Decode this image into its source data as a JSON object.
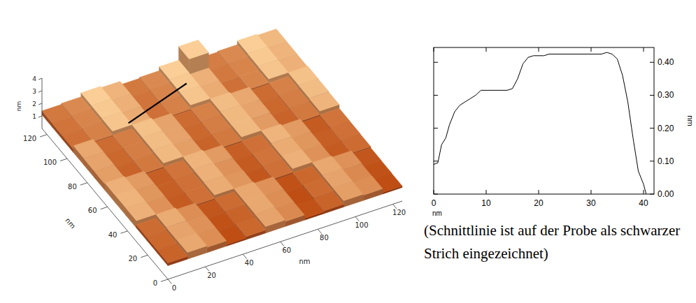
{
  "chart_data": [
    {
      "type": "surface",
      "x_label": "nm",
      "y_label": "nm",
      "z_label": "nm",
      "xlim": [
        0,
        125
      ],
      "ylim": [
        0,
        125
      ],
      "zlim": [
        0,
        4
      ],
      "xticks": [
        0,
        20,
        40,
        60,
        80,
        100,
        120
      ],
      "yticks": [
        0,
        20,
        40,
        60,
        80,
        100,
        120
      ],
      "zticks": [
        1,
        2,
        3,
        4
      ],
      "z": [
        [
          1.3,
          1.62,
          1.5,
          1.2,
          1.32,
          1.6,
          1.48,
          1.22,
          1.3,
          1.58,
          1.5,
          1.2
        ],
        [
          1.32,
          1.6,
          1.52,
          1.22,
          1.3,
          1.62,
          1.5,
          1.2,
          1.34,
          1.6,
          1.48,
          1.22
        ],
        [
          1.34,
          1.64,
          1.5,
          1.24,
          1.34,
          1.62,
          1.52,
          1.22,
          1.32,
          1.62,
          1.52,
          1.24
        ],
        [
          1.66,
          1.52,
          1.26,
          1.36,
          1.64,
          1.54,
          1.24,
          1.36,
          1.66,
          1.52,
          1.26,
          1.34
        ],
        [
          1.68,
          1.54,
          1.28,
          1.36,
          1.66,
          1.52,
          1.26,
          1.38,
          1.64,
          1.54,
          1.28,
          1.36
        ],
        [
          1.66,
          1.56,
          1.28,
          1.38,
          1.68,
          1.56,
          1.28,
          1.36,
          1.68,
          1.56,
          1.26,
          1.38
        ],
        [
          1.58,
          1.3,
          1.4,
          1.7,
          1.58,
          1.3,
          1.4,
          1.7,
          1.56,
          1.3,
          1.4,
          1.68
        ],
        [
          1.6,
          1.32,
          1.42,
          1.72,
          1.6,
          1.32,
          1.42,
          1.7,
          1.6,
          1.32,
          1.42,
          1.72
        ],
        [
          1.62,
          1.34,
          1.42,
          1.74,
          1.6,
          1.34,
          1.44,
          1.72,
          1.62,
          1.34,
          1.44,
          1.74
        ],
        [
          1.36,
          1.44,
          1.76,
          1.64,
          1.36,
          1.44,
          1.76,
          1.64,
          1.36,
          1.46,
          1.76,
          1.66
        ],
        [
          1.38,
          1.46,
          1.78,
          1.66,
          1.38,
          1.46,
          1.78,
          1.66,
          1.4,
          1.46,
          1.78,
          1.68
        ],
        [
          1.4,
          1.48,
          1.8,
          1.68,
          1.4,
          1.48,
          1.8,
          2.9,
          1.42,
          1.48,
          1.8,
          1.7
        ]
      ],
      "cut_line": {
        "x": [
          30,
          68
        ],
        "y": [
          95,
          108
        ],
        "color": "#000000"
      }
    },
    {
      "type": "line",
      "x_label": "nm",
      "y_label": "nm",
      "xlim": [
        0,
        42
      ],
      "ylim": [
        0,
        0.445
      ],
      "xticks": [
        0,
        10,
        20,
        30,
        40
      ],
      "yticks": [
        {
          "value": 0,
          "label": "0.00"
        },
        {
          "value": 0.1,
          "label": "0.10"
        },
        {
          "value": 0.2,
          "label": "0.20"
        },
        {
          "value": 0.3,
          "label": "0.30"
        },
        {
          "value": 0.4,
          "label": "0.40"
        }
      ],
      "color": "#000000",
      "x": [
        0,
        0.8,
        1.5,
        2.3,
        3,
        4,
        5,
        6,
        7,
        8,
        9,
        10,
        14,
        15,
        16,
        17,
        18,
        19,
        21,
        22,
        24,
        32,
        33,
        34,
        35,
        36,
        37,
        38,
        39,
        40,
        40.5
      ],
      "values": [
        0.09,
        0.095,
        0.15,
        0.17,
        0.21,
        0.25,
        0.27,
        0.28,
        0.29,
        0.3,
        0.315,
        0.315,
        0.315,
        0.32,
        0.35,
        0.395,
        0.415,
        0.42,
        0.42,
        0.425,
        0.425,
        0.425,
        0.43,
        0.425,
        0.41,
        0.36,
        0.28,
        0.17,
        0.07,
        0.03,
        0.0
      ]
    }
  ],
  "caption": "(Schnittlinie ist auf der Probe als schwarzer Strich eingezeichnet)"
}
